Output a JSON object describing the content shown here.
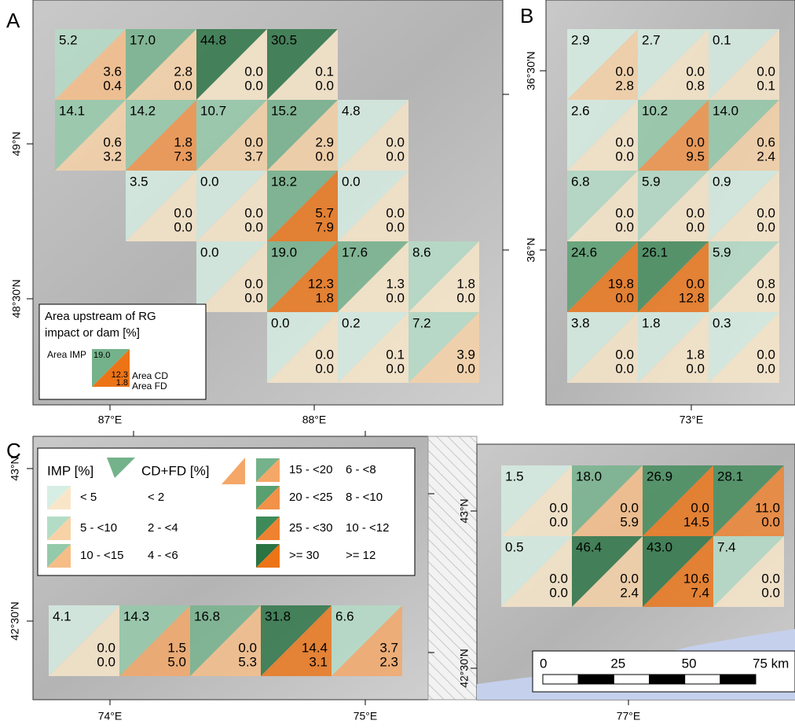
{
  "panels": [
    {
      "label": "A",
      "axis_labels": [
        "87°E",
        "88°E",
        "49°N",
        "48°30'N"
      ],
      "legend": {
        "title_lines": [
          "Area upstream of RG",
          "impact or dam [%]"
        ],
        "imp_label": "Area IMP",
        "cd_label": "Area CD",
        "fd_label": "Area FD",
        "imp": "19.0",
        "cd": "12.3",
        "fd": "1.8",
        "imp_color": "#74b28b",
        "cdfd_color": "#ec7417"
      },
      "cells": [
        {
          "imp": "5.2",
          "cd": "3.6",
          "fd": "0.4",
          "imp_color": "#b3dcc6",
          "cdfd_color": "#f6bd86"
        },
        {
          "imp": "17.0",
          "cd": "2.8",
          "fd": "0.0",
          "imp_color": "#74b28b",
          "cdfd_color": "#f8d2a6"
        },
        {
          "imp": "44.8",
          "cd": "0.0",
          "fd": "0.0",
          "imp_color": "#2a7343",
          "cdfd_color": "#f9e6c9"
        },
        {
          "imp": "30.5",
          "cd": "0.1",
          "fd": "0.0",
          "imp_color": "#2a7343",
          "cdfd_color": "#f9e6c9"
        },
        {
          "imp": "14.1",
          "cd": "0.6",
          "fd": "3.2",
          "imp_color": "#94c9aa",
          "cdfd_color": "#f8d2a6"
        },
        {
          "imp": "14.2",
          "cd": "1.8",
          "fd": "7.3",
          "imp_color": "#94c9aa",
          "cdfd_color": "#f19248"
        },
        {
          "imp": "10.7",
          "cd": "0.0",
          "fd": "3.7",
          "imp_color": "#94c9aa",
          "cdfd_color": "#f8d2a6"
        },
        {
          "imp": "15.2",
          "cd": "2.9",
          "fd": "0.0",
          "imp_color": "#74b28b",
          "cdfd_color": "#f8d2a6"
        },
        {
          "imp": "4.8",
          "cd": "0.0",
          "fd": "0.0",
          "imp_color": "#d6eee3",
          "cdfd_color": "#f9e6c9"
        },
        {
          "imp": "3.5",
          "cd": "0.0",
          "fd": "0.0",
          "imp_color": "#d6eee3",
          "cdfd_color": "#f9e6c9"
        },
        {
          "imp": "0.0",
          "cd": "0.0",
          "fd": "0.0",
          "imp_color": "#d6eee3",
          "cdfd_color": "#f9e6c9"
        },
        {
          "imp": "18.2",
          "cd": "5.7",
          "fd": "7.9",
          "imp_color": "#74b28b",
          "cdfd_color": "#ec7417"
        },
        {
          "imp": "0.0",
          "cd": "0.0",
          "fd": "0.0",
          "imp_color": "#d6eee3",
          "cdfd_color": "#f9e6c9"
        },
        {
          "imp": "0.0",
          "cd": "0.0",
          "fd": "0.0",
          "imp_color": "#d6eee3",
          "cdfd_color": "#f9e6c9"
        },
        {
          "imp": "19.0",
          "cd": "12.3",
          "fd": "1.8",
          "imp_color": "#74b28b",
          "cdfd_color": "#ec7417"
        },
        {
          "imp": "17.6",
          "cd": "1.3",
          "fd": "0.0",
          "imp_color": "#74b28b",
          "cdfd_color": "#f9e6c9"
        },
        {
          "imp": "8.6",
          "cd": "1.8",
          "fd": "0.0",
          "imp_color": "#b3dcc6",
          "cdfd_color": "#f9e6c9"
        },
        {
          "imp": "0.0",
          "cd": "0.0",
          "fd": "0.0",
          "imp_color": "#d6eee3",
          "cdfd_color": "#f9e6c9"
        },
        {
          "imp": "0.2",
          "cd": "0.1",
          "fd": "0.0",
          "imp_color": "#d6eee3",
          "cdfd_color": "#f9e6c9"
        },
        {
          "imp": "7.2",
          "cd": "3.9",
          "fd": "0.0",
          "imp_color": "#b3dcc6",
          "cdfd_color": "#f8d2a6"
        }
      ]
    },
    {
      "label": "B",
      "axis_labels": [
        "73°E",
        "36°30'N",
        "36°N"
      ],
      "cells": [
        {
          "imp": "2.9",
          "cd": "0.0",
          "fd": "2.8",
          "imp_color": "#d6eee3",
          "cdfd_color": "#f8d2a6"
        },
        {
          "imp": "2.7",
          "cd": "0.0",
          "fd": "0.8",
          "imp_color": "#d6eee3",
          "cdfd_color": "#f9e6c9"
        },
        {
          "imp": "0.1",
          "cd": "0.0",
          "fd": "0.1",
          "imp_color": "#d6eee3",
          "cdfd_color": "#f9e6c9"
        },
        {
          "imp": "2.6",
          "cd": "0.0",
          "fd": "0.0",
          "imp_color": "#d6eee3",
          "cdfd_color": "#f9e6c9"
        },
        {
          "imp": "10.2",
          "cd": "0.0",
          "fd": "9.5",
          "imp_color": "#94c9aa",
          "cdfd_color": "#f19248"
        },
        {
          "imp": "14.0",
          "cd": "0.6",
          "fd": "2.4",
          "imp_color": "#94c9aa",
          "cdfd_color": "#f8d2a6"
        },
        {
          "imp": "6.8",
          "cd": "0.0",
          "fd": "0.0",
          "imp_color": "#b3dcc6",
          "cdfd_color": "#f9e6c9"
        },
        {
          "imp": "5.9",
          "cd": "0.0",
          "fd": "0.0",
          "imp_color": "#b3dcc6",
          "cdfd_color": "#f9e6c9"
        },
        {
          "imp": "0.9",
          "cd": "0.0",
          "fd": "0.0",
          "imp_color": "#d6eee3",
          "cdfd_color": "#f9e6c9"
        },
        {
          "imp": "24.6",
          "cd": "19.8",
          "fd": "0.0",
          "imp_color": "#58a070",
          "cdfd_color": "#ec7417"
        },
        {
          "imp": "26.1",
          "cd": "0.0",
          "fd": "12.8",
          "imp_color": "#3f8a59",
          "cdfd_color": "#ec7417"
        },
        {
          "imp": "5.9",
          "cd": "0.8",
          "fd": "0.0",
          "imp_color": "#b3dcc6",
          "cdfd_color": "#f9e6c9"
        },
        {
          "imp": "3.8",
          "cd": "0.0",
          "fd": "0.0",
          "imp_color": "#d6eee3",
          "cdfd_color": "#f9e6c9"
        },
        {
          "imp": "1.8",
          "cd": "1.8",
          "fd": "0.0",
          "imp_color": "#d6eee3",
          "cdfd_color": "#f9e6c9"
        },
        {
          "imp": "0.3",
          "cd": "0.0",
          "fd": "0.0",
          "imp_color": "#d6eee3",
          "cdfd_color": "#f9e6c9"
        }
      ]
    },
    {
      "label": "C",
      "axis_labels": [
        "74°E",
        "75°E",
        "43°N",
        "42°30'N"
      ],
      "legend": {
        "imp_header": "IMP [%]",
        "cdfd_header": "CD+FD [%]",
        "imp_header_color": "#74b28b",
        "cdfd_header_color": "#f4a767",
        "items": [
          {
            "imp": "< 5",
            "cdfd": "< 2",
            "imp_color": "#d6eee3",
            "cdfd_color": "#f9e6c9"
          },
          {
            "imp": "5 - <10",
            "cdfd": "2 - <4",
            "imp_color": "#b3dcc6",
            "cdfd_color": "#f8d2a6"
          },
          {
            "imp": "10 - <15",
            "cdfd": "4 - <6",
            "imp_color": "#94c9aa",
            "cdfd_color": "#f6bd86"
          },
          {
            "imp": "15 - <20",
            "cdfd": "6 - <8",
            "imp_color": "#74b28b",
            "cdfd_color": "#f4a767"
          },
          {
            "imp": "20 - <25",
            "cdfd": "8 - <10",
            "imp_color": "#58a070",
            "cdfd_color": "#f19248"
          },
          {
            "imp": "25 - <30",
            "cdfd": "10 - <12",
            "imp_color": "#3f8a59",
            "cdfd_color": "#ef8230"
          },
          {
            "imp": ">= 30",
            "cdfd": ">= 12",
            "imp_color": "#2a7343",
            "cdfd_color": "#ec7417"
          }
        ]
      },
      "cells": [
        {
          "imp": "4.1",
          "cd": "0.0",
          "fd": "0.0",
          "imp_color": "#d6eee3",
          "cdfd_color": "#f9e6c9"
        },
        {
          "imp": "14.3",
          "cd": "1.5",
          "fd": "5.0",
          "imp_color": "#94c9aa",
          "cdfd_color": "#f4a767"
        },
        {
          "imp": "16.8",
          "cd": "0.0",
          "fd": "5.3",
          "imp_color": "#74b28b",
          "cdfd_color": "#f6bd86"
        },
        {
          "imp": "31.8",
          "cd": "14.4",
          "fd": "3.1",
          "imp_color": "#2a7343",
          "cdfd_color": "#ec7417"
        },
        {
          "imp": "6.6",
          "cd": "3.7",
          "fd": "2.3",
          "imp_color": "#b3dcc6",
          "cdfd_color": "#f4a767"
        }
      ]
    },
    {
      "axis_labels": [
        "77°E",
        "43°N",
        "42°30'N"
      ],
      "scale_bar": {
        "labels": [
          "0",
          "25",
          "50",
          "75 km"
        ]
      },
      "cells": [
        {
          "imp": "1.5",
          "cd": "0.0",
          "fd": "0.0",
          "imp_color": "#d6eee3",
          "cdfd_color": "#f9e6c9"
        },
        {
          "imp": "18.0",
          "cd": "0.0",
          "fd": "5.9",
          "imp_color": "#74b28b",
          "cdfd_color": "#f6bd86"
        },
        {
          "imp": "26.9",
          "cd": "0.0",
          "fd": "14.5",
          "imp_color": "#3f8a59",
          "cdfd_color": "#ec7417"
        },
        {
          "imp": "28.1",
          "cd": "11.0",
          "fd": "0.0",
          "imp_color": "#3f8a59",
          "cdfd_color": "#ef8230"
        },
        {
          "imp": "0.5",
          "cd": "0.0",
          "fd": "0.0",
          "imp_color": "#d6eee3",
          "cdfd_color": "#f9e6c9"
        },
        {
          "imp": "46.4",
          "cd": "0.0",
          "fd": "2.4",
          "imp_color": "#2a7343",
          "cdfd_color": "#f8d2a6"
        },
        {
          "imp": "43.0",
          "cd": "10.6",
          "fd": "7.4",
          "imp_color": "#2a7343",
          "cdfd_color": "#ec7417"
        },
        {
          "imp": "7.4",
          "cd": "0.0",
          "fd": "0.0",
          "imp_color": "#b3dcc6",
          "cdfd_color": "#f9e6c9"
        }
      ]
    }
  ]
}
